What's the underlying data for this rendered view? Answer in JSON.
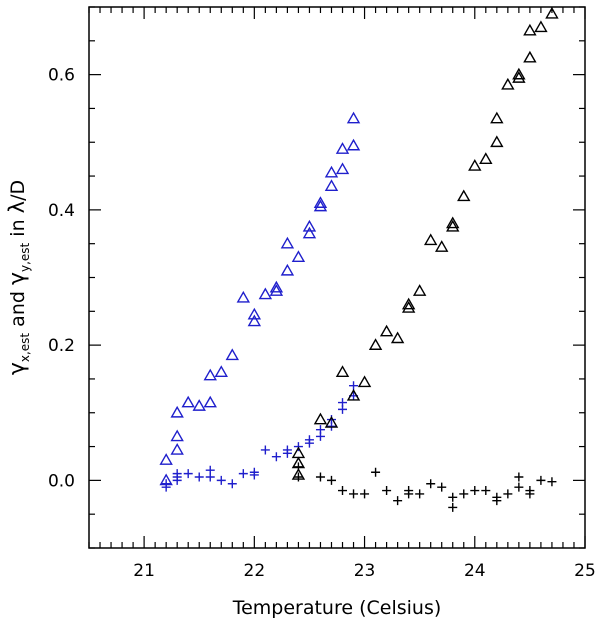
{
  "chart_data": {
    "type": "scatter",
    "title": "",
    "xlabel": "Temperature (Celsius)",
    "ylabel": {
      "parts": [
        "γ",
        "x,est",
        " and ",
        "γ",
        "y,est",
        " in ",
        "λ",
        "/D"
      ]
    },
    "xlim": [
      20.5,
      25.0
    ],
    "ylim": [
      -0.1,
      0.7
    ],
    "xticks": [
      21,
      22,
      23,
      24,
      25
    ],
    "xtick_labels": [
      "21",
      "22",
      "23",
      "24",
      "25"
    ],
    "yticks": [
      0.0,
      0.2,
      0.4,
      0.6
    ],
    "ytick_labels": [
      "0.0",
      "0.2",
      "0.4",
      "0.6"
    ],
    "x_minor_step": 0.1,
    "y_minor_step": 0.05,
    "grid": false,
    "series": [
      {
        "name": "blue-triangles",
        "marker": "triangle",
        "color": "#1f1fcc",
        "points": [
          [
            21.2,
            0.03
          ],
          [
            21.2,
            0.0
          ],
          [
            21.3,
            0.1
          ],
          [
            21.3,
            0.065
          ],
          [
            21.3,
            0.045
          ],
          [
            21.4,
            0.115
          ],
          [
            21.5,
            0.11
          ],
          [
            21.6,
            0.115
          ],
          [
            21.6,
            0.155
          ],
          [
            21.7,
            0.16
          ],
          [
            21.8,
            0.185
          ],
          [
            21.9,
            0.27
          ],
          [
            22.0,
            0.245
          ],
          [
            22.0,
            0.235
          ],
          [
            22.1,
            0.275
          ],
          [
            22.2,
            0.285
          ],
          [
            22.2,
            0.28
          ],
          [
            22.3,
            0.31
          ],
          [
            22.3,
            0.35
          ],
          [
            22.4,
            0.33
          ],
          [
            22.5,
            0.375
          ],
          [
            22.5,
            0.365
          ],
          [
            22.6,
            0.41
          ],
          [
            22.6,
            0.405
          ],
          [
            22.7,
            0.455
          ],
          [
            22.7,
            0.435
          ],
          [
            22.8,
            0.49
          ],
          [
            22.8,
            0.46
          ],
          [
            22.9,
            0.535
          ],
          [
            22.9,
            0.495
          ]
        ]
      },
      {
        "name": "blue-crosses",
        "marker": "plus",
        "color": "#1f1fcc",
        "points": [
          [
            21.2,
            -0.005
          ],
          [
            21.2,
            -0.01
          ],
          [
            21.3,
            0.0
          ],
          [
            21.3,
            0.01
          ],
          [
            21.3,
            0.005
          ],
          [
            21.4,
            0.01
          ],
          [
            21.5,
            0.005
          ],
          [
            21.6,
            0.015
          ],
          [
            21.6,
            0.005
          ],
          [
            21.7,
            0.0
          ],
          [
            21.8,
            -0.005
          ],
          [
            21.9,
            0.01
          ],
          [
            22.0,
            0.012
          ],
          [
            22.0,
            0.008
          ],
          [
            22.1,
            0.045
          ],
          [
            22.2,
            0.035
          ],
          [
            22.3,
            0.04
          ],
          [
            22.3,
            0.045
          ],
          [
            22.4,
            0.05
          ],
          [
            22.5,
            0.055
          ],
          [
            22.5,
            0.06
          ],
          [
            22.6,
            0.075
          ],
          [
            22.6,
            0.065
          ],
          [
            22.7,
            0.09
          ],
          [
            22.7,
            0.08
          ],
          [
            22.8,
            0.115
          ],
          [
            22.8,
            0.105
          ],
          [
            22.9,
            0.14
          ],
          [
            22.9,
            0.125
          ]
        ]
      },
      {
        "name": "black-triangles",
        "marker": "triangle",
        "color": "#000000",
        "points": [
          [
            22.4,
            0.04
          ],
          [
            22.4,
            0.025
          ],
          [
            22.4,
            0.008
          ],
          [
            22.6,
            0.09
          ],
          [
            22.7,
            0.085
          ],
          [
            22.8,
            0.16
          ],
          [
            22.9,
            0.125
          ],
          [
            23.0,
            0.145
          ],
          [
            23.1,
            0.2
          ],
          [
            23.2,
            0.22
          ],
          [
            23.3,
            0.21
          ],
          [
            23.4,
            0.26
          ],
          [
            23.4,
            0.255
          ],
          [
            23.5,
            0.28
          ],
          [
            23.6,
            0.355
          ],
          [
            23.7,
            0.345
          ],
          [
            23.8,
            0.38
          ],
          [
            23.8,
            0.375
          ],
          [
            23.9,
            0.42
          ],
          [
            24.0,
            0.465
          ],
          [
            24.1,
            0.475
          ],
          [
            24.2,
            0.5
          ],
          [
            24.2,
            0.535
          ],
          [
            24.3,
            0.585
          ],
          [
            24.4,
            0.6
          ],
          [
            24.4,
            0.595
          ],
          [
            24.5,
            0.625
          ],
          [
            24.5,
            0.665
          ],
          [
            24.6,
            0.67
          ],
          [
            24.7,
            0.69
          ]
        ]
      },
      {
        "name": "black-crosses",
        "marker": "plus",
        "color": "#000000",
        "points": [
          [
            22.4,
            0.02
          ],
          [
            22.4,
            0.005
          ],
          [
            22.6,
            0.005
          ],
          [
            22.7,
            0.0
          ],
          [
            22.8,
            -0.015
          ],
          [
            22.9,
            -0.02
          ],
          [
            23.0,
            -0.02
          ],
          [
            23.1,
            0.012
          ],
          [
            23.2,
            -0.015
          ],
          [
            23.3,
            -0.03
          ],
          [
            23.4,
            -0.02
          ],
          [
            23.4,
            -0.015
          ],
          [
            23.5,
            -0.02
          ],
          [
            23.6,
            -0.005
          ],
          [
            23.7,
            -0.01
          ],
          [
            23.8,
            -0.025
          ],
          [
            23.8,
            -0.04
          ],
          [
            23.9,
            -0.02
          ],
          [
            24.0,
            -0.015
          ],
          [
            24.1,
            -0.015
          ],
          [
            24.2,
            -0.025
          ],
          [
            24.2,
            -0.03
          ],
          [
            24.3,
            -0.02
          ],
          [
            24.4,
            0.005
          ],
          [
            24.4,
            -0.01
          ],
          [
            24.5,
            -0.015
          ],
          [
            24.5,
            -0.02
          ],
          [
            24.6,
            0.0
          ],
          [
            24.7,
            -0.002
          ]
        ]
      }
    ]
  }
}
